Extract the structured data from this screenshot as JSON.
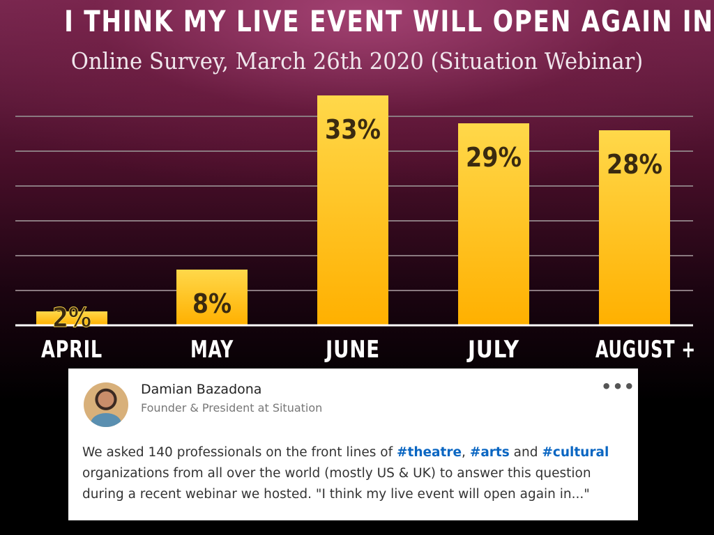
{
  "header": {
    "title": "I THINK MY LIVE EVENT WILL OPEN AGAIN IN:",
    "subtitle": "Online Survey, March 26th 2020 (Situation Webinar)"
  },
  "chart_data": {
    "type": "bar",
    "title": "I THINK MY LIVE EVENT WILL OPEN AGAIN IN:",
    "subtitle": "Online Survey, March 26th 2020 (Situation Webinar)",
    "categories": [
      "APRIL",
      "MAY",
      "JUNE",
      "JULY",
      "AUGUST +"
    ],
    "values": [
      2,
      8,
      33,
      29,
      28
    ],
    "data_labels": [
      "2%",
      "8%",
      "33%",
      "29%",
      "28%"
    ],
    "ylim": [
      0,
      33
    ],
    "grid": true,
    "xlabel": "",
    "ylabel": "",
    "colors": {
      "bar_top": "#ffd84a",
      "bar_bottom": "#ffb000",
      "grid": "#8a7a80",
      "axis": "#ffffff"
    }
  },
  "post": {
    "author": "Damian Bazadona",
    "role": "Founder & President at Situation",
    "more_icon": "more-icon",
    "text_part1": "We asked 140 professionals on the front lines of ",
    "hashtag1": "#theatre",
    "text_part2": ", ",
    "hashtag2": "#arts",
    "text_part3": " and ",
    "hashtag3": "#cultural",
    "text_part4": " organizations from all over the world (mostly US & UK) to answer this question during a recent webinar we hosted.  \"I think my live event will open again in...\""
  }
}
